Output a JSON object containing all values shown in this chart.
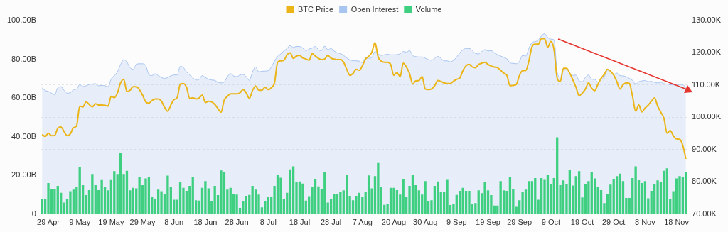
{
  "chart_data": {
    "type": "bar",
    "legend": "top",
    "grid": "y2",
    "marker": "none",
    "categories": [
      null,
      null,
      "29 Apr",
      null,
      null,
      null,
      null,
      null,
      null,
      null,
      null,
      null,
      "9 May",
      null,
      null,
      null,
      null,
      null,
      null,
      null,
      null,
      null,
      "19 May",
      null,
      null,
      null,
      null,
      null,
      null,
      null,
      null,
      null,
      "29 May",
      null,
      null,
      null,
      null,
      null,
      null,
      null,
      null,
      null,
      "8 Jun",
      null,
      null,
      null,
      null,
      null,
      null,
      null,
      null,
      null,
      "18 Jun",
      null,
      null,
      null,
      null,
      null,
      null,
      null,
      null,
      null,
      "28 Jun",
      null,
      null,
      null,
      null,
      null,
      null,
      null,
      null,
      null,
      "8 Jul",
      null,
      null,
      null,
      null,
      null,
      null,
      null,
      null,
      null,
      "18 Jul",
      null,
      null,
      null,
      null,
      null,
      null,
      null,
      null,
      null,
      "28 Jul",
      null,
      null,
      null,
      null,
      null,
      null,
      null,
      null,
      null,
      "7 Aug",
      null,
      null,
      null,
      null,
      null,
      null,
      null,
      null,
      null,
      "20 Aug",
      null,
      null,
      null,
      null,
      null,
      null,
      null,
      null,
      null,
      "30 Aug",
      null,
      null,
      null,
      null,
      null,
      null,
      null,
      null,
      null,
      "9 Sep",
      null,
      null,
      null,
      null,
      null,
      null,
      null,
      null,
      null,
      "19 Sep",
      null,
      null,
      null,
      null,
      null,
      null,
      null,
      null,
      null,
      "29 Sep",
      null,
      null,
      null,
      null,
      null,
      null,
      null,
      null,
      null,
      "9 Oct",
      null,
      null,
      null,
      null,
      null,
      null,
      null,
      null,
      null,
      "19 Oct",
      null,
      null,
      null,
      null,
      null,
      null,
      null,
      null,
      null,
      "29 Oct",
      null,
      null,
      null,
      null,
      null,
      null,
      null,
      null,
      null,
      "8 Nov",
      null,
      null,
      null,
      null,
      null,
      null,
      null,
      null,
      null,
      "18 Nov",
      null,
      null,
      null
    ],
    "ylim": [
      0,
      100
    ],
    "yticks": [
      0,
      {
        "value": 20,
        "label": "20.00B"
      },
      {
        "value": 40,
        "label": "40.00B"
      },
      {
        "value": 60,
        "label": "60.00B"
      },
      {
        "value": 80,
        "label": "80.00B"
      },
      {
        "value": 100,
        "label": "100.00B"
      }
    ],
    "y2lim": [
      70,
      130
    ],
    "y2ticks": [
      {
        "value": 70,
        "label": "70.00K"
      },
      {
        "value": 80,
        "label": "80.00K"
      },
      {
        "value": 90,
        "label": "90.00K"
      },
      {
        "value": 100,
        "label": "100.00K"
      },
      {
        "value": 110,
        "label": "110.00K"
      },
      {
        "value": 120,
        "label": "120.00K"
      },
      {
        "value": 130,
        "label": "130.00K"
      }
    ],
    "series": [
      {
        "name": "BTC Price",
        "type": "line",
        "axis": "y2",
        "color": "#ebb517",
        "values": [
          94.7,
          94.1,
          95.1,
          94.3,
          94.4,
          96.6,
          97.0,
          95.6,
          94.3,
          94.9,
          96.8,
          97.4,
          103.5,
          103.2,
          104.8,
          104.0,
          103.2,
          104.2,
          103.8,
          103.8,
          103.7,
          103.5,
          106.5,
          106.1,
          107.6,
          110.7,
          111.8,
          108.0,
          108.4,
          109.5,
          109.5,
          108.6,
          106.9,
          104.8,
          104.4,
          105.2,
          105.7,
          105.7,
          105.0,
          103.1,
          101.9,
          103.8,
          105.5,
          106.1,
          110.3,
          110.5,
          109.3,
          105.9,
          106.1,
          105.7,
          106.0,
          106.9,
          104.6,
          105.0,
          104.8,
          104.0,
          102.7,
          101.6,
          105.4,
          106.5,
          107.3,
          107.3,
          107.3,
          107.6,
          108.6,
          107.6,
          105.9,
          108.3,
          109.7,
          108.4,
          108.4,
          109.3,
          108.6,
          109.2,
          110.7,
          117.1,
          117.5,
          117.7,
          119.4,
          120.0,
          118.3,
          119.0,
          119.2,
          118.4,
          118.1,
          117.7,
          119.7,
          119.0,
          118.3,
          117.9,
          118.1,
          119.2,
          118.3,
          118.1,
          117.9,
          117.9,
          117.1,
          114.9,
          113.0,
          113.6,
          114.9,
          114.6,
          116.0,
          118.1,
          118.9,
          120.2,
          123.2,
          118.7,
          117.4,
          117.1,
          117.1,
          116.4,
          113.0,
          113.9,
          112.6,
          116.8,
          115.6,
          113.6,
          110.3,
          111.3,
          111.4,
          112.6,
          108.8,
          108.6,
          108.8,
          109.8,
          111.4,
          111.1,
          110.7,
          110.5,
          110.5,
          111.2,
          111.8,
          112.2,
          114.5,
          116.0,
          116.4,
          115.6,
          115.4,
          116.4,
          116.8,
          117.1,
          116.4,
          115.9,
          115.6,
          115.4,
          114.6,
          113.7,
          113.0,
          109.8,
          109.9,
          110.2,
          113.0,
          114.5,
          114.5,
          117.5,
          121.9,
          122.7,
          122.7,
          124.4,
          124.4,
          121.7,
          123.5,
          121.0,
          112.2,
          111.1,
          115.2,
          115.2,
          113.7,
          111.6,
          109.3,
          106.7,
          107.5,
          108.8,
          110.7,
          109.0,
          108.3,
          110.3,
          112.1,
          113.3,
          114.9,
          114.3,
          113.1,
          111.1,
          108.8,
          110.1,
          110.7,
          110.5,
          106.5,
          101.9,
          103.8,
          101.7,
          102.9,
          103.8,
          105.0,
          106.0,
          103.5,
          101.6,
          99.7,
          95.1,
          95.9,
          94.3,
          93.3,
          93.2,
          91.3,
          87.1
        ]
      },
      {
        "name": "Open Interest",
        "type": "area",
        "color": "#a8c4f0",
        "values": [
          65.2,
          63.8,
          63.4,
          62.5,
          61.7,
          65.3,
          65.8,
          64.0,
          62.5,
          62.7,
          64.3,
          64.6,
          66.9,
          65.9,
          66.3,
          67.0,
          67.2,
          67.4,
          66.3,
          66.5,
          66.3,
          65.8,
          69.7,
          71.6,
          73.5,
          77.3,
          79.8,
          78.6,
          75.7,
          74.8,
          77.3,
          77.7,
          77.7,
          76.7,
          72.2,
          71.6,
          72.5,
          71.6,
          70.6,
          70.1,
          70.6,
          71.4,
          71.9,
          71.9,
          76.4,
          75.7,
          73.5,
          71.9,
          70.6,
          69.3,
          69.6,
          71.6,
          70.6,
          69.7,
          69.3,
          69.1,
          68.1,
          67.8,
          68.3,
          71.0,
          72.6,
          71.4,
          71.0,
          71.9,
          72.2,
          71.0,
          69.1,
          73.5,
          76.0,
          73.5,
          73.8,
          73.9,
          74.1,
          76.0,
          79.0,
          81.5,
          82.8,
          84.3,
          85.6,
          87.1,
          86.2,
          86.6,
          86.6,
          85.8,
          84.5,
          85.3,
          85.8,
          86.6,
          84.9,
          84.5,
          86.8,
          84.9,
          85.6,
          84.3,
          83.3,
          83.0,
          82.0,
          80.7,
          79.7,
          79.3,
          79.2,
          79.0,
          78.3,
          80.7,
          80.5,
          81.0,
          84.0,
          82.8,
          82.0,
          82.3,
          82.6,
          82.3,
          82.3,
          82.4,
          82.8,
          84.0,
          83.7,
          84.5,
          82.0,
          81.4,
          81.2,
          81.2,
          80.6,
          79.8,
          79.5,
          80.5,
          81.5,
          80.5,
          79.2,
          79.2,
          78.7,
          79.5,
          81.1,
          83.3,
          84.9,
          85.6,
          85.6,
          84.5,
          83.0,
          82.8,
          84.0,
          85.0,
          84.3,
          84.5,
          83.3,
          82.4,
          81.7,
          81.0,
          80.2,
          78.2,
          77.9,
          77.7,
          79.0,
          82.0,
          81.7,
          85.6,
          88.6,
          89.1,
          89.9,
          92.1,
          93.2,
          91.3,
          90.4,
          90.1,
          73.5,
          70.6,
          75.2,
          75.2,
          72.9,
          71.6,
          71.9,
          68.8,
          68.4,
          70.6,
          71.9,
          69.7,
          69.6,
          68.1,
          69.6,
          70.9,
          74.4,
          73.6,
          72.2,
          72.9,
          71.6,
          71.4,
          71.0,
          70.1,
          69.1,
          67.2,
          68.4,
          68.8,
          69.1,
          68.4,
          68.6,
          68.1,
          67.8,
          68.1,
          67.4,
          67.2,
          66.8,
          66.8,
          66.5,
          67.0,
          66.8,
          65.5
        ]
      },
      {
        "name": "Volume",
        "type": "bar",
        "color": "#3ecf80",
        "values": [
          7.6,
          8.0,
          16.1,
          13.1,
          13.1,
          14.6,
          11.0,
          6.0,
          8.0,
          11.8,
          12.7,
          13.9,
          24.1,
          15.0,
          9.8,
          12.4,
          20.7,
          15.0,
          12.4,
          17.6,
          13.9,
          12.3,
          17.6,
          22.2,
          20.7,
          31.7,
          20.7,
          22.4,
          12.3,
          13.6,
          13.3,
          19.0,
          15.0,
          18.4,
          19.1,
          9.1,
          8.0,
          12.7,
          11.8,
          10.5,
          19.9,
          13.9,
          7.4,
          7.4,
          16.5,
          13.6,
          12.0,
          14.6,
          19.0,
          7.2,
          7.0,
          13.6,
          17.1,
          13.3,
          6.7,
          14.6,
          9.8,
          22.6,
          21.9,
          12.7,
          13.6,
          10.5,
          10.1,
          3.2,
          6.6,
          9.5,
          9.9,
          14.6,
          12.7,
          10.1,
          3.5,
          6.7,
          9.1,
          9.1,
          14.6,
          20.3,
          18.8,
          8.0,
          11.0,
          23.1,
          24.7,
          16.5,
          16.9,
          15.8,
          7.0,
          9.3,
          14.2,
          18.0,
          14.3,
          12.9,
          21.9,
          6.0,
          7.6,
          10.5,
          10.5,
          11.4,
          12.3,
          20.3,
          9.5,
          7.2,
          9.5,
          11.0,
          9.1,
          11.4,
          20.0,
          13.3,
          19.6,
          26.4,
          13.9,
          4.8,
          5.4,
          13.6,
          13.6,
          12.4,
          10.1,
          18.1,
          8.9,
          14.6,
          20.5,
          15.0,
          12.3,
          10.1,
          17.1,
          6.6,
          7.2,
          14.6,
          16.9,
          11.7,
          11.7,
          17.7,
          4.7,
          5.4,
          9.9,
          12.0,
          13.6,
          12.0,
          12.0,
          5.4,
          5.7,
          12.3,
          10.8,
          16.5,
          12.3,
          9.8,
          4.4,
          4.4,
          17.1,
          12.3,
          12.0,
          19.0,
          13.1,
          3.8,
          7.2,
          11.4,
          12.7,
          17.1,
          17.1,
          18.6,
          7.4,
          18.6,
          17.7,
          20.3,
          15.5,
          18.6,
          39.7,
          15.0,
          17.4,
          15.5,
          22.8,
          14.8,
          19.6,
          22.2,
          8.6,
          15.5,
          17.1,
          21.9,
          18.4,
          14.2,
          12.4,
          5.7,
          10.5,
          15.2,
          18.0,
          19.6,
          20.9,
          17.1,
          8.4,
          8.4,
          18.6,
          24.7,
          17.5,
          16.1,
          17.1,
          8.2,
          12.0,
          15.6,
          17.4,
          16.5,
          22.4,
          23.7,
          7.9,
          11.8,
          18.4,
          19.6,
          19.0,
          21.8
        ]
      }
    ]
  }
}
